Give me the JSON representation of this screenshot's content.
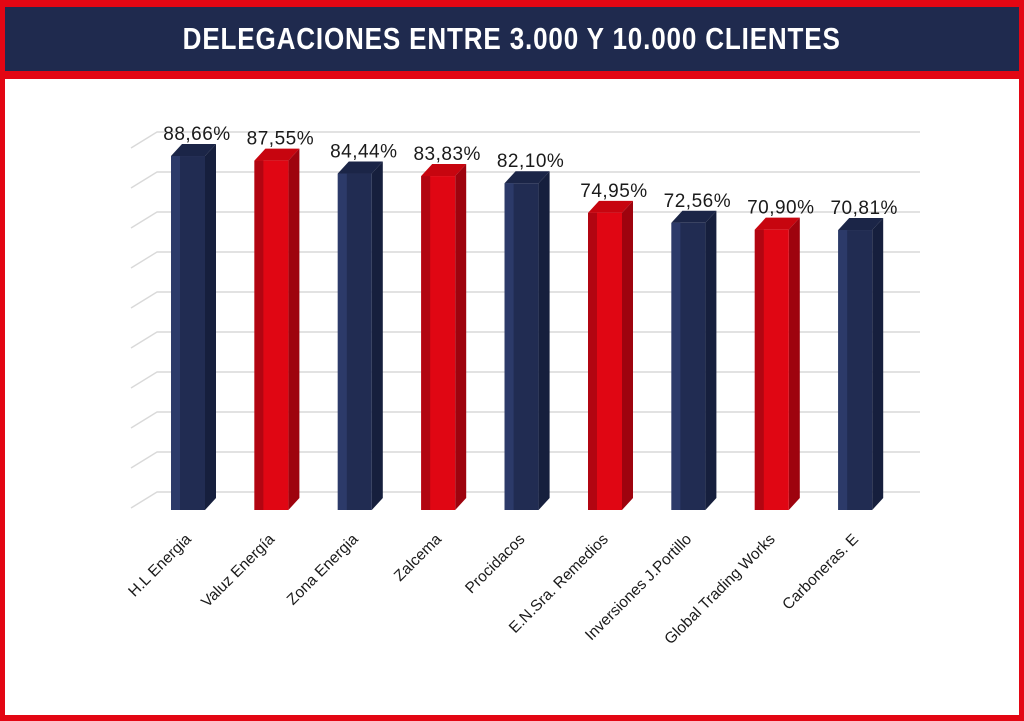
{
  "header": {
    "title": "DELEGACIONES ENTRE 3.000 Y 10.000 CLIENTES"
  },
  "colors": {
    "accent_red": "#E30613",
    "header_navy": "#1F2A4E",
    "grid_line": "#D9D9D9",
    "label_text": "#1A1A1A"
  },
  "chart_data": {
    "type": "bar",
    "style": "3d-column",
    "title": "DELEGACIONES ENTRE 3.000 Y 10.000 CLIENTES",
    "xlabel": "",
    "ylabel": "",
    "unit": "%",
    "ylim": [
      0,
      100
    ],
    "grid": true,
    "legend": "none",
    "categories": [
      "H.L Energia",
      "Valuz Energía",
      "Zona Energia",
      "Zalcema",
      "Procidacos",
      "E.N.Sra. Remedios",
      "Inversiones J.Portillo",
      "Global Trading Works",
      "Carboneras. E"
    ],
    "values": [
      88.66,
      87.55,
      84.44,
      83.83,
      82.1,
      74.95,
      72.56,
      70.9,
      70.81
    ],
    "value_labels": [
      "88,66%",
      "87,55%",
      "84,44%",
      "83,83%",
      "82,10%",
      "74,95%",
      "72,56%",
      "70,90%",
      "70,81%"
    ],
    "bar_palette_keys": [
      "navy",
      "red",
      "navy",
      "red",
      "navy",
      "red",
      "navy",
      "red",
      "navy"
    ],
    "palettes": {
      "navy": {
        "front": "#212C52",
        "side": "#161F3D",
        "top": "#1B2547",
        "edge": "#2C3A69"
      },
      "red": {
        "front": "#E00613",
        "side": "#9E030E",
        "top": "#C7050F",
        "edge": "#B20511"
      }
    }
  }
}
